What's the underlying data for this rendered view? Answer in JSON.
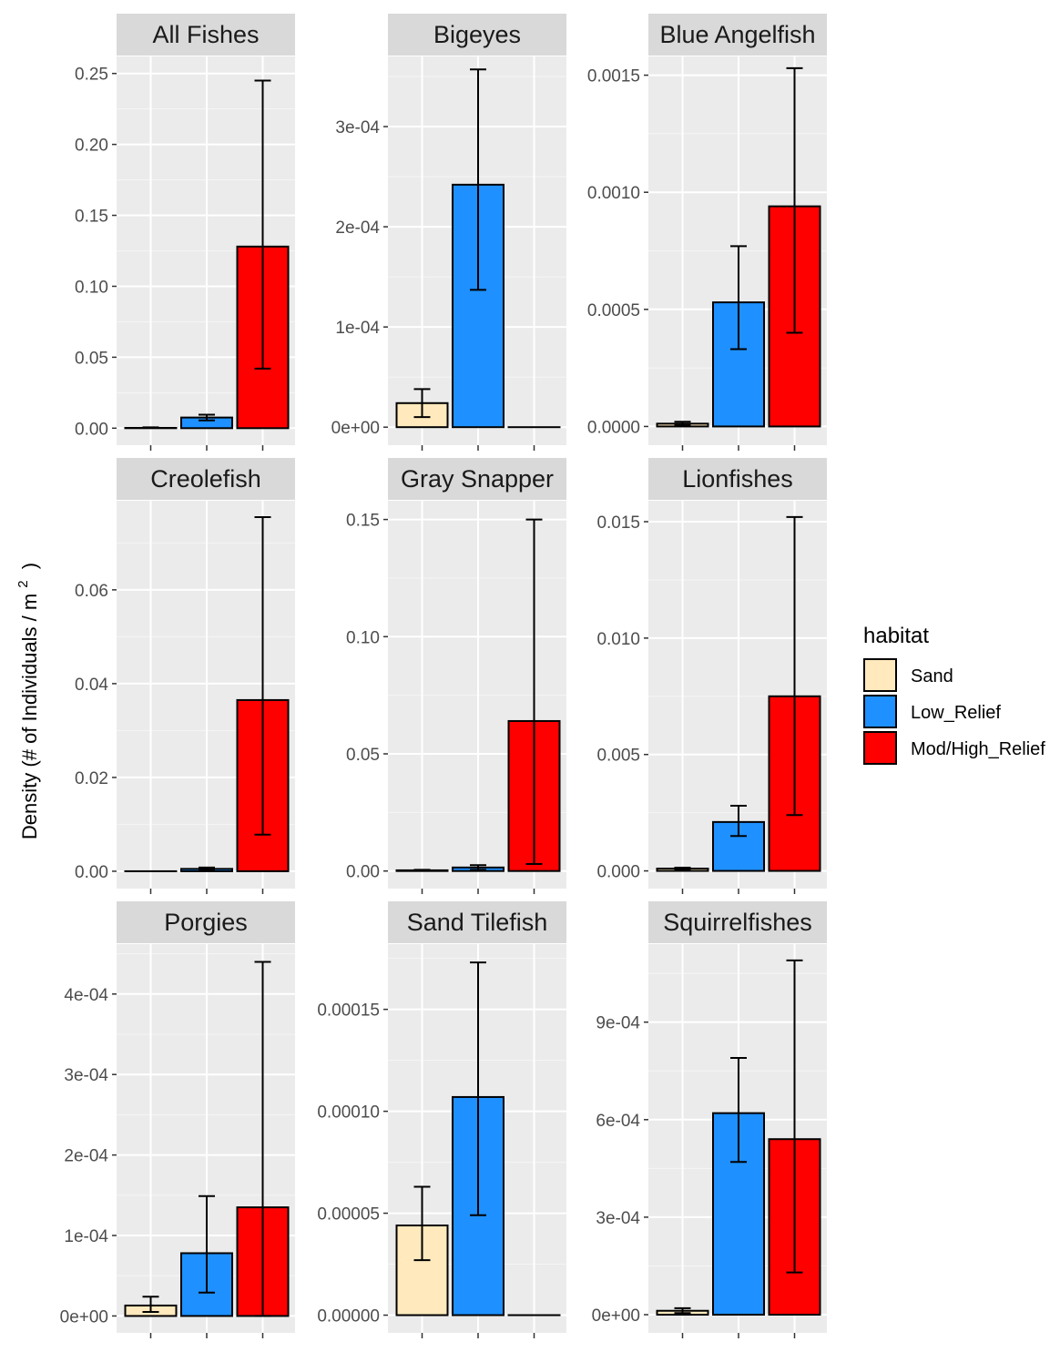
{
  "chart_data": {
    "type": "bar",
    "ylabel": "Density (# of Individuals / m",
    "ylabel_superscript": "2",
    "ylabel_close": ")",
    "xlabel": "",
    "legend": {
      "title": "habitat",
      "placement": "right",
      "entries": [
        {
          "name": "Sand",
          "color": "#FFE9BD"
        },
        {
          "name": "Low_Relief",
          "color": "#1E90FF"
        },
        {
          "name": "Mod/High_Relief",
          "color": "#FF0000"
        }
      ]
    },
    "categories": [
      "Sand",
      "Low_Relief",
      "Mod/High_Relief"
    ],
    "grid": true,
    "error_bars": true,
    "panels": [
      {
        "title": "All Fishes",
        "ylim": [
          -0.012,
          0.262
        ],
        "ticks": [
          0,
          0.05,
          0.1,
          0.15,
          0.2,
          0.25
        ],
        "tick_labels": [
          "0.00",
          "0.05",
          "0.10",
          "0.15",
          "0.20",
          "0.25"
        ],
        "values": [
          0.0002,
          0.0075,
          0.128
        ],
        "err_low": [
          0.0002,
          0.0055,
          0.042
        ],
        "err_high": [
          0.0006,
          0.0095,
          0.245
        ]
      },
      {
        "title": "Bigeyes",
        "ylim": [
          -1.8e-05,
          0.00037
        ],
        "ticks": [
          0,
          0.0001,
          0.0002,
          0.0003
        ],
        "tick_labels": [
          "0e+00",
          "1e-04",
          "2e-04",
          "3e-04"
        ],
        "values": [
          2.4e-05,
          0.000242,
          0.0
        ],
        "err_low": [
          1e-05,
          0.000137,
          0.0
        ],
        "err_high": [
          3.8e-05,
          0.000357,
          0.0
        ]
      },
      {
        "title": "Blue Angelfish",
        "ylim": [
          -8e-05,
          0.00158
        ],
        "ticks": [
          0,
          0.0005,
          0.001,
          0.0015
        ],
        "tick_labels": [
          "0.0000",
          "0.0005",
          "0.0010",
          "0.0015"
        ],
        "values": [
          1.2e-05,
          0.00053,
          0.00094
        ],
        "err_low": [
          5e-06,
          0.00033,
          0.0004
        ],
        "err_high": [
          2e-05,
          0.00077,
          0.00153
        ]
      },
      {
        "title": "Creolefish",
        "ylim": [
          -0.0037,
          0.079
        ],
        "ticks": [
          0,
          0.02,
          0.04,
          0.06
        ],
        "tick_labels": [
          "0.00",
          "0.02",
          "0.04",
          "0.06"
        ],
        "values": [
          0.0,
          0.0005,
          0.0365
        ],
        "err_low": [
          0.0,
          0.0002,
          0.0078
        ],
        "err_high": [
          0.0,
          0.0008,
          0.0755
        ]
      },
      {
        "title": "Gray Snapper",
        "ylim": [
          -0.0075,
          0.158
        ],
        "ticks": [
          0,
          0.05,
          0.1,
          0.15
        ],
        "tick_labels": [
          "0.00",
          "0.05",
          "0.10",
          "0.15"
        ],
        "values": [
          0.0003,
          0.0015,
          0.064
        ],
        "err_low": [
          0.0001,
          0.0005,
          0.003
        ],
        "err_high": [
          0.0005,
          0.0025,
          0.15
        ]
      },
      {
        "title": "Lionfishes",
        "ylim": [
          -0.00076,
          0.0159
        ],
        "ticks": [
          0,
          0.005,
          0.01,
          0.015
        ],
        "tick_labels": [
          "0.000",
          "0.005",
          "0.010",
          "0.015"
        ],
        "values": [
          0.0001,
          0.0021,
          0.0075
        ],
        "err_low": [
          6e-05,
          0.0015,
          0.0024
        ],
        "err_high": [
          0.00014,
          0.0028,
          0.0152
        ]
      },
      {
        "title": "Porgies",
        "ylim": [
          -2.1e-05,
          0.000462
        ],
        "ticks": [
          0,
          0.0001,
          0.0002,
          0.0003,
          0.0004
        ],
        "tick_labels": [
          "0e+00",
          "1e-04",
          "2e-04",
          "3e-04",
          "4e-04"
        ],
        "values": [
          1.3e-05,
          7.8e-05,
          0.000135
        ],
        "err_low": [
          5e-06,
          2.9e-05,
          0.0
        ],
        "err_high": [
          2.4e-05,
          0.000149,
          0.00044
        ]
      },
      {
        "title": "Sand Tilefish",
        "ylim": [
          -8.7e-06,
          0.000182
        ],
        "ticks": [
          0,
          5e-05,
          0.0001,
          0.00015
        ],
        "tick_labels": [
          "0.00000",
          "0.00005",
          "0.00010",
          "0.00015"
        ],
        "values": [
          4.4e-05,
          0.000107,
          0.0
        ],
        "err_low": [
          2.7e-05,
          4.9e-05,
          0.0
        ],
        "err_high": [
          6.3e-05,
          0.000173,
          0.0
        ]
      },
      {
        "title": "Squirrelfishes",
        "ylim": [
          -5.6e-05,
          0.00114
        ],
        "ticks": [
          0,
          0.0003,
          0.0006,
          0.0009
        ],
        "tick_labels": [
          "0e+00",
          "3e-04",
          "6e-04",
          "9e-04"
        ],
        "values": [
          1.2e-05,
          0.00062,
          0.00054
        ],
        "err_low": [
          5e-06,
          0.00047,
          0.00013
        ],
        "err_high": [
          2e-05,
          0.00079,
          0.00109
        ]
      }
    ]
  }
}
